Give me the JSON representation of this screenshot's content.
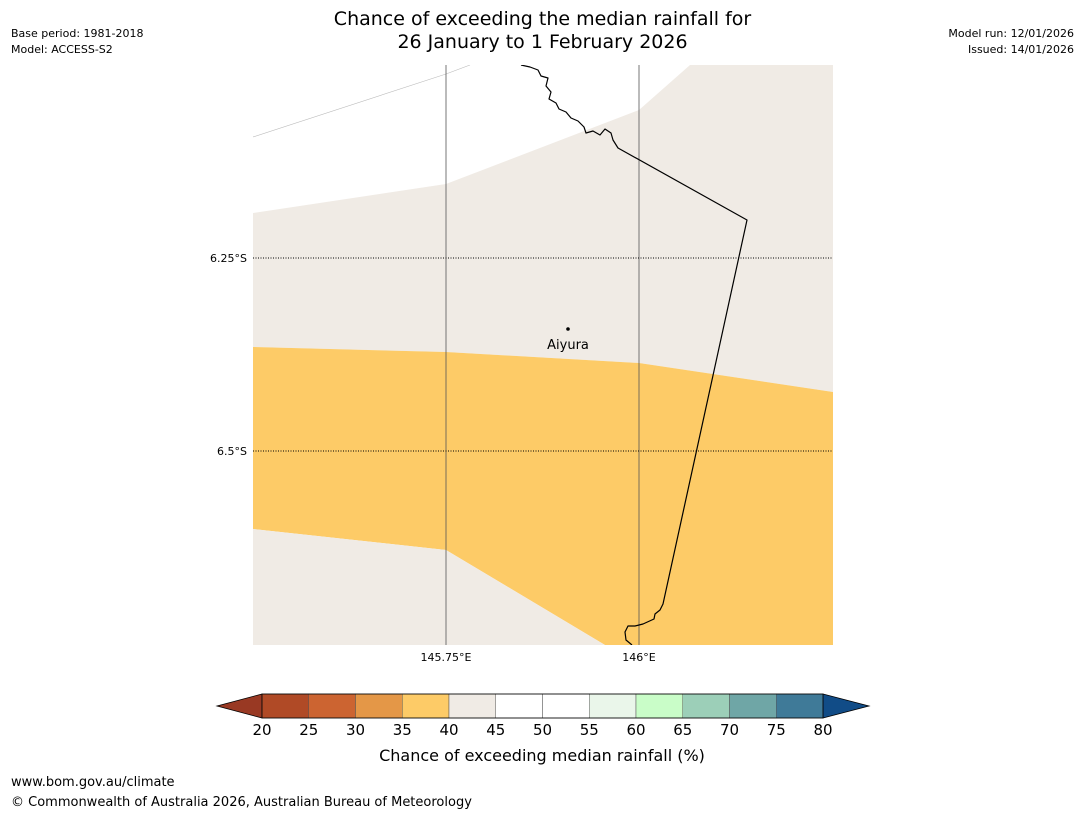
{
  "title": {
    "line1": "Chance of exceeding the median rainfall for",
    "line2": "26 January to 1 February 2026"
  },
  "meta_left": {
    "base_period": "Base period: 1981-2018",
    "model": "Model: ACCESS-S2"
  },
  "meta_right": {
    "model_run": "Model run: 12/01/2026",
    "issued": "Issued: 14/01/2026"
  },
  "map": {
    "lat_labels": [
      "6.25°S",
      "6.5°S"
    ],
    "lon_labels": [
      "145.75°E",
      "146°E"
    ],
    "place": {
      "name": "Aiyura"
    },
    "colors": {
      "band_40_45": "#f0ebe5",
      "band_35_40": "#fdcb67",
      "border": "#000000",
      "gridline": "#555555"
    }
  },
  "colorbar": {
    "title": "Chance of exceeding median rainfall (%)",
    "ticks": [
      "20",
      "25",
      "30",
      "35",
      "40",
      "45",
      "50",
      "55",
      "60",
      "65",
      "70",
      "75",
      "80"
    ],
    "under_color": "#993923",
    "over_color": "#114c87",
    "colors": [
      "#b04a26",
      "#cc6431",
      "#e49747",
      "#fdcb67",
      "#f0ebe5",
      "#ffffff",
      "#ffffff",
      "#eaf6ea",
      "#c9fdc8",
      "#9ccfb8",
      "#6fa6a6",
      "#3f7a98"
    ]
  },
  "footer": {
    "url": "www.bom.gov.au/climate",
    "copyright": "© Commonwealth of Australia 2026, Australian Bureau of Meteorology"
  }
}
